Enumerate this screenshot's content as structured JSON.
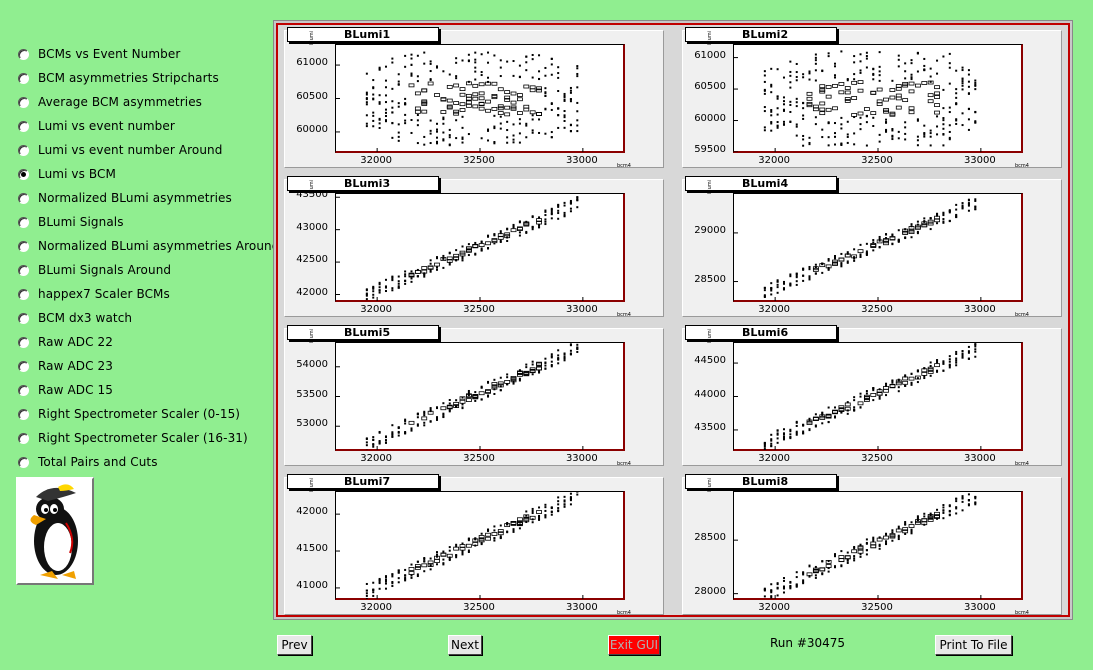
{
  "radio_options": [
    {
      "label": "BCMs vs Event Number",
      "checked": false
    },
    {
      "label": "BCM asymmetries Stripcharts",
      "checked": false
    },
    {
      "label": "Average BCM asymmetries",
      "checked": false
    },
    {
      "label": "Lumi vs event number",
      "checked": false
    },
    {
      "label": "Lumi vs event number Around",
      "checked": false
    },
    {
      "label": "Lumi vs BCM",
      "checked": true
    },
    {
      "label": "Normalized BLumi asymmetries",
      "checked": false
    },
    {
      "label": "BLumi Signals",
      "checked": false
    },
    {
      "label": "Normalized BLumi asymmetries Around",
      "checked": false
    },
    {
      "label": "BLumi Signals Around",
      "checked": false
    },
    {
      "label": "happex7 Scaler BCMs",
      "checked": false
    },
    {
      "label": "BCM dx3 watch",
      "checked": false
    },
    {
      "label": "Raw ADC 22",
      "checked": false
    },
    {
      "label": "Raw ADC 23",
      "checked": false
    },
    {
      "label": "Raw ADC 15",
      "checked": false
    },
    {
      "label": "Right Spectrometer Scaler (0-15)",
      "checked": false
    },
    {
      "label": "Right Spectrometer Scaler (16-31)",
      "checked": false
    },
    {
      "label": "Total Pairs and Cuts",
      "checked": false
    }
  ],
  "logo": {
    "icon": "penguin-mascot-icon"
  },
  "buttons": {
    "prev": "Prev",
    "next": "Next",
    "exit": "Exit GUI",
    "print": "Print To File"
  },
  "run_label": "Run #30475",
  "axis_units": {
    "x": "bcm4",
    "y": "blumi"
  },
  "colors": {
    "background": "#90ee90",
    "canvas_border": "#c00000",
    "exit_button": "#ff0000"
  },
  "chart_data": [
    {
      "type": "scatter",
      "title": "BLumi1",
      "xlim": [
        31800,
        33200
      ],
      "ylim": [
        59700,
        61300
      ],
      "xticks": [
        32000,
        32500,
        33000
      ],
      "yticks": [
        60000,
        60500,
        61000
      ],
      "trend": "flat",
      "band": [
        59800,
        61200
      ]
    },
    {
      "type": "scatter",
      "title": "BLumi2",
      "xlim": [
        31800,
        33200
      ],
      "ylim": [
        59500,
        61200
      ],
      "xticks": [
        32000,
        32500,
        33000
      ],
      "yticks": [
        59500,
        60000,
        60500,
        61000
      ],
      "trend": "flat",
      "band": [
        59600,
        61100
      ]
    },
    {
      "type": "scatter",
      "title": "BLumi3",
      "xlim": [
        31800,
        33200
      ],
      "ylim": [
        41900,
        43550
      ],
      "xticks": [
        32000,
        32500,
        33000
      ],
      "yticks": [
        42000,
        42500,
        43000,
        43500
      ],
      "trend": "rising",
      "band": [
        42000,
        43400
      ]
    },
    {
      "type": "scatter",
      "title": "BLumi4",
      "xlim": [
        31800,
        33200
      ],
      "ylim": [
        28300,
        29400
      ],
      "xticks": [
        32000,
        32500,
        33000
      ],
      "yticks": [
        28500,
        29000
      ],
      "trend": "rising",
      "band": [
        28400,
        29300
      ]
    },
    {
      "type": "scatter",
      "title": "BLumi5",
      "xlim": [
        31800,
        33200
      ],
      "ylim": [
        52600,
        54400
      ],
      "xticks": [
        32000,
        32500,
        33000
      ],
      "yticks": [
        53000,
        53500,
        54000
      ],
      "trend": "rising",
      "band": [
        52700,
        54300
      ]
    },
    {
      "type": "scatter",
      "title": "BLumi6",
      "xlim": [
        31800,
        33200
      ],
      "ylim": [
        43200,
        44800
      ],
      "xticks": [
        32000,
        32500,
        33000
      ],
      "yticks": [
        43500,
        44000,
        44500
      ],
      "trend": "rising",
      "band": [
        43300,
        44700
      ]
    },
    {
      "type": "scatter",
      "title": "BLumi7",
      "xlim": [
        31800,
        33200
      ],
      "ylim": [
        40850,
        42300
      ],
      "xticks": [
        32000,
        32500,
        33000
      ],
      "yticks": [
        41000,
        41500,
        42000
      ],
      "trend": "rising",
      "band": [
        40950,
        42250
      ]
    },
    {
      "type": "scatter",
      "title": "BLumi8",
      "xlim": [
        31800,
        33200
      ],
      "ylim": [
        27950,
        28950
      ],
      "xticks": [
        32000,
        32500,
        33000
      ],
      "yticks": [
        28000,
        28500
      ],
      "trend": "rising",
      "band": [
        28000,
        28900
      ]
    }
  ]
}
